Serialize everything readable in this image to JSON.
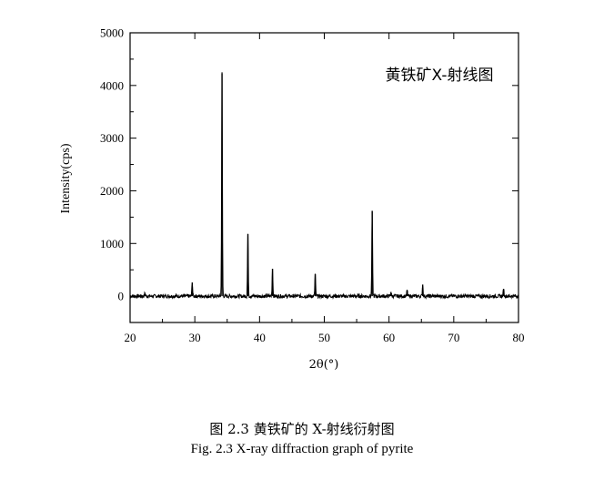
{
  "chart_data": {
    "type": "line",
    "title": "黄铁矿X-射线图",
    "xlabel": "2θ(°)",
    "ylabel": "Intensity(cps)",
    "xlim": [
      20,
      80
    ],
    "ylim": [
      -500,
      5000
    ],
    "x_ticks": [
      20,
      30,
      40,
      50,
      60,
      70,
      80
    ],
    "y_ticks": [
      0,
      1000,
      2000,
      3000,
      4000,
      5000
    ],
    "grid": false,
    "baseline": 0,
    "peaks": [
      {
        "x": 22.3,
        "y": 60
      },
      {
        "x": 29.6,
        "y": 260
      },
      {
        "x": 34.2,
        "y": 4230
      },
      {
        "x": 38.2,
        "y": 1180
      },
      {
        "x": 42.0,
        "y": 520
      },
      {
        "x": 48.6,
        "y": 420
      },
      {
        "x": 57.4,
        "y": 1620
      },
      {
        "x": 60.3,
        "y": 80
      },
      {
        "x": 62.8,
        "y": 110
      },
      {
        "x": 65.2,
        "y": 220
      },
      {
        "x": 77.7,
        "y": 140
      }
    ]
  },
  "captions": {
    "chinese": "图  2.3  黄铁矿的 X-射线衍射图",
    "english": "Fig. 2.3 X-ray diffraction graph of pyrite"
  }
}
